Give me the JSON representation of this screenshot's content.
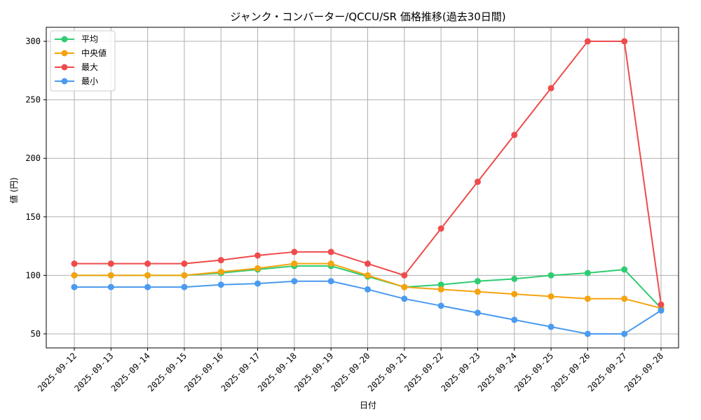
{
  "chart_data": {
    "type": "line",
    "title": "ジャンク・コンバーター/QCCU/SR 価格推移(過去30日間)",
    "xlabel": "日付",
    "ylabel": "値 (円)",
    "ylim": [
      38,
      312
    ],
    "yticks": [
      50,
      100,
      150,
      200,
      250,
      300
    ],
    "grid": true,
    "legend_position": "top-left",
    "categories": [
      "2025-09-12",
      "2025-09-13",
      "2025-09-14",
      "2025-09-15",
      "2025-09-16",
      "2025-09-17",
      "2025-09-18",
      "2025-09-19",
      "2025-09-20",
      "2025-09-21",
      "2025-09-22",
      "2025-09-23",
      "2025-09-24",
      "2025-09-25",
      "2025-09-26",
      "2025-09-27",
      "2025-09-28"
    ],
    "series": [
      {
        "name": "平均",
        "color": "#2ecc71",
        "values": [
          100,
          100,
          100,
          100,
          102,
          105,
          108,
          108,
          99,
          90,
          92,
          95,
          97,
          100,
          102,
          105,
          72
        ]
      },
      {
        "name": "中央値",
        "color": "#f5a30f",
        "values": [
          100,
          100,
          100,
          100,
          103,
          106,
          110,
          110,
          100,
          90,
          88,
          86,
          84,
          82,
          80,
          80,
          72
        ]
      },
      {
        "name": "最大",
        "color": "#ef4b4b",
        "values": [
          110,
          110,
          110,
          110,
          113,
          117,
          120,
          120,
          110,
          100,
          140,
          180,
          220,
          260,
          300,
          300,
          75
        ]
      },
      {
        "name": "最小",
        "color": "#4a9af0",
        "values": [
          90,
          90,
          90,
          90,
          92,
          93,
          95,
          95,
          88,
          80,
          74,
          68,
          62,
          56,
          50,
          50,
          70
        ]
      }
    ]
  }
}
